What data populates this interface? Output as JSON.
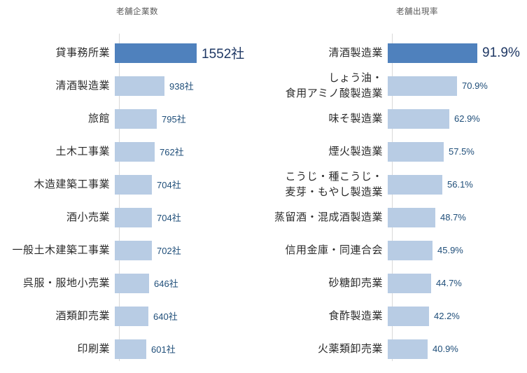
{
  "colors": {
    "bar_highlight": "#4f81bd",
    "bar_regular": "#b8cce4",
    "axis_line": "#d9d9d9",
    "title_text": "#595959",
    "category_text": "#2b2b2b",
    "value_text": "#1f4e79",
    "value_emphasis_text": "#1f3864",
    "background": "#ffffff"
  },
  "chart_data": [
    {
      "type": "bar",
      "orientation": "horizontal",
      "title": "老舗企業数",
      "unit": "社",
      "categories": [
        "貸事務所業",
        "清酒製造業",
        "旅館",
        "土木工事業",
        "木造建築工事業",
        "酒小売業",
        "一般土木建築工事業",
        "呉服・服地小売業",
        "酒類卸売業",
        "印刷業"
      ],
      "values": [
        1552,
        938,
        795,
        762,
        704,
        704,
        702,
        646,
        640,
        601
      ],
      "value_labels": [
        "1552社",
        "938社",
        "795社",
        "762社",
        "704社",
        "704社",
        "702社",
        "646社",
        "640社",
        "601社"
      ],
      "highlight_index": 0,
      "xlim": [
        0,
        1600
      ],
      "grid": false,
      "legend": false,
      "xlabel": "",
      "ylabel": ""
    },
    {
      "type": "bar",
      "orientation": "horizontal",
      "title": "老舗出現率",
      "unit": "%",
      "categories": [
        "清酒製造業",
        "しょう油・\n食用アミノ酸製造業",
        "味そ製造業",
        "煙火製造業",
        "こうじ・種こうじ・\n麦芽・もやし製造業",
        "蒸留酒・混成酒製造業",
        "信用金庫・同連合会",
        "砂糖卸売業",
        "食酢製造業",
        "火薬類卸売業"
      ],
      "values": [
        91.9,
        70.9,
        62.9,
        57.5,
        56.1,
        48.7,
        45.9,
        44.7,
        42.2,
        40.9
      ],
      "value_labels": [
        "91.9%",
        "70.9%",
        "62.9%",
        "57.5%",
        "56.1%",
        "48.7%",
        "45.9%",
        "44.7%",
        "42.2%",
        "40.9%"
      ],
      "highlight_index": 0,
      "xlim": [
        0,
        100
      ],
      "grid": false,
      "legend": false,
      "xlabel": "",
      "ylabel": ""
    }
  ]
}
